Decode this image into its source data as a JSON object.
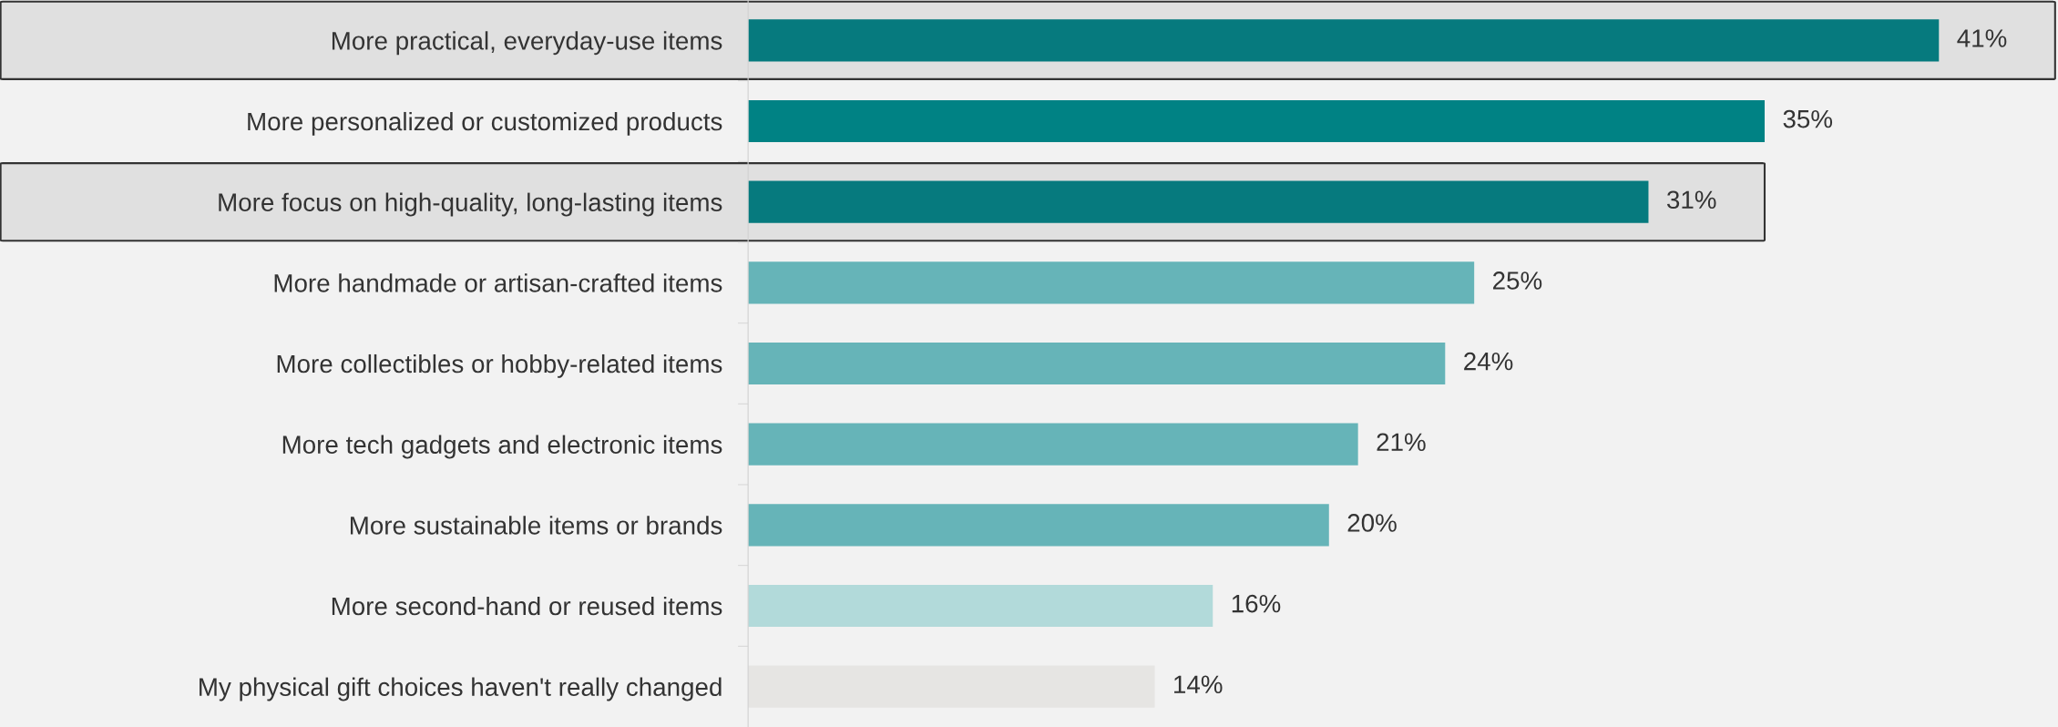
{
  "chart_data": {
    "type": "bar",
    "orientation": "horizontal",
    "categories": [
      "More practical, everyday-use items",
      "More personalized or customized products",
      "More focus on high-quality, long-lasting items",
      "More handmade or artisan-crafted items",
      "More collectibles or hobby-related items",
      "More tech gadgets and electronic items",
      "More sustainable items or brands",
      "More second-hand or reused items",
      "My physical gift choices haven't really changed"
    ],
    "values": [
      41,
      35,
      31,
      25,
      24,
      21,
      20,
      16,
      14
    ],
    "value_labels": [
      "41%",
      "35%",
      "31%",
      "25%",
      "24%",
      "21%",
      "20%",
      "16%",
      "14%"
    ],
    "colors": [
      "#067a7e",
      "#008284",
      "#067a7e",
      "#66b4b8",
      "#66b4b8",
      "#66b4b8",
      "#66b4b8",
      "#b2dada",
      "#e6e5e3"
    ],
    "tick_labels": "y",
    "grid": false,
    "legend": false
  }
}
